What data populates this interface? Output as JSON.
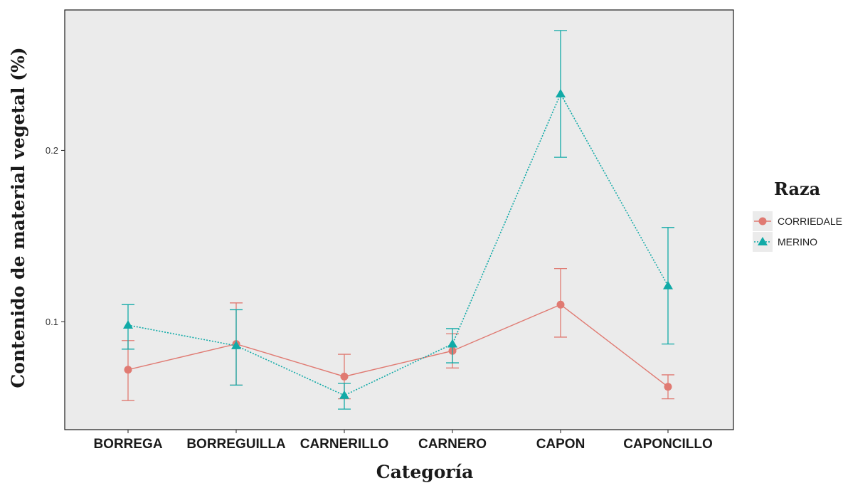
{
  "chart_data": {
    "type": "line",
    "xlabel": "Categoría",
    "ylabel": "Contenido de material vegetal (%)",
    "categories": [
      "BORREGA",
      "BORREGUILLA",
      "CARNERILLO",
      "CARNERO",
      "CAPON",
      "CAPONCILLO"
    ],
    "y_ticks": [
      0.1,
      0.2
    ],
    "y_tick_labels": [
      "0.1",
      "0.2"
    ],
    "ylim": [
      0.037,
      0.282
    ],
    "grid": false,
    "panel_color": "#ebebeb",
    "legend": {
      "title": "Raza",
      "position": "right"
    },
    "series": [
      {
        "name": "CORRIEDALE",
        "color": "#e07a72",
        "marker": "circle",
        "line_style": "solid",
        "values": [
          0.072,
          0.087,
          0.068,
          0.083,
          0.11,
          0.062
        ],
        "error_low": [
          0.054,
          0.063,
          0.055,
          0.073,
          0.091,
          0.055
        ],
        "error_high": [
          0.089,
          0.111,
          0.081,
          0.093,
          0.131,
          0.069
        ]
      },
      {
        "name": "MERINO",
        "color": "#11aaa7",
        "marker": "triangle",
        "line_style": "dotted",
        "values": [
          0.098,
          0.086,
          0.057,
          0.087,
          0.233,
          0.121
        ],
        "error_low": [
          0.084,
          0.063,
          0.049,
          0.076,
          0.196,
          0.087
        ],
        "error_high": [
          0.11,
          0.107,
          0.064,
          0.096,
          0.27,
          0.155
        ]
      }
    ]
  }
}
